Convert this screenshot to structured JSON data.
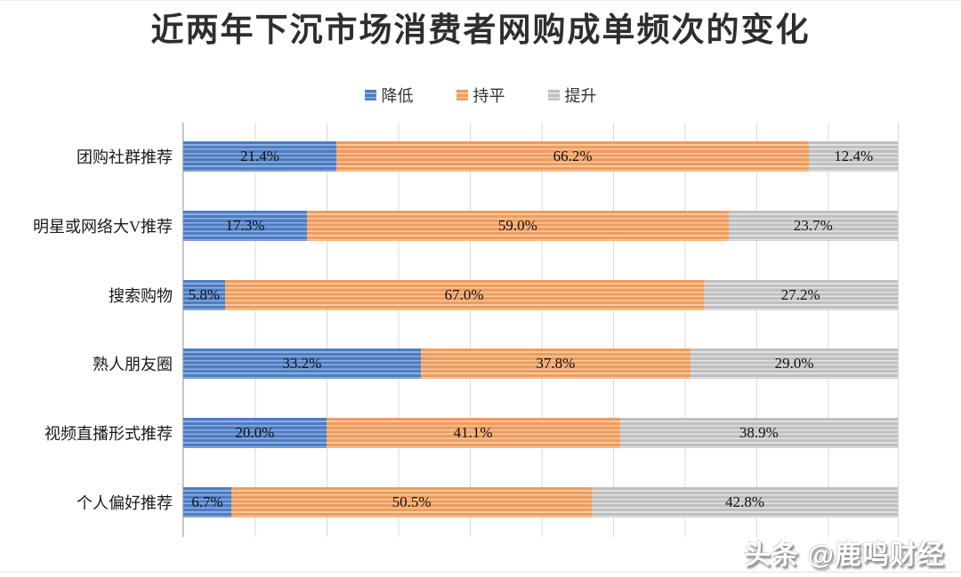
{
  "page": {
    "watermark": "头条 @鹿鸣财经"
  },
  "chart_data": {
    "type": "bar",
    "orientation": "horizontal-stacked",
    "title": "近两年下沉市场消费者网购成单频次的变化",
    "categories": [
      "团购社群推荐",
      "明星或网络大V推荐",
      "搜索购物",
      "熟人朋友圈",
      "视频直播形式推荐",
      "个人偏好推荐"
    ],
    "series": [
      {
        "name": "降低",
        "color": "#4d7cc3",
        "stripe_color": "#8fb0de",
        "values": [
          21.4,
          17.3,
          5.8,
          33.2,
          20.0,
          6.7
        ]
      },
      {
        "name": "持平",
        "color": "#ee9c5e",
        "stripe_color": "#f7c99e",
        "values": [
          66.2,
          59.0,
          67.0,
          37.8,
          41.1,
          50.5
        ]
      },
      {
        "name": "提升",
        "color": "#bfbfbf",
        "stripe_color": "#e2e2e2",
        "values": [
          12.4,
          23.7,
          27.2,
          29.0,
          38.9,
          42.8
        ]
      }
    ],
    "value_label_format": "0.0%",
    "xlim": [
      0,
      100
    ],
    "grid_interval_percent": 10,
    "grid_color": "#d9d9d9",
    "axis_line_color": "#b3b3b3",
    "legend_position": "top",
    "bar_fill_pattern": "horizontal-stripes"
  }
}
